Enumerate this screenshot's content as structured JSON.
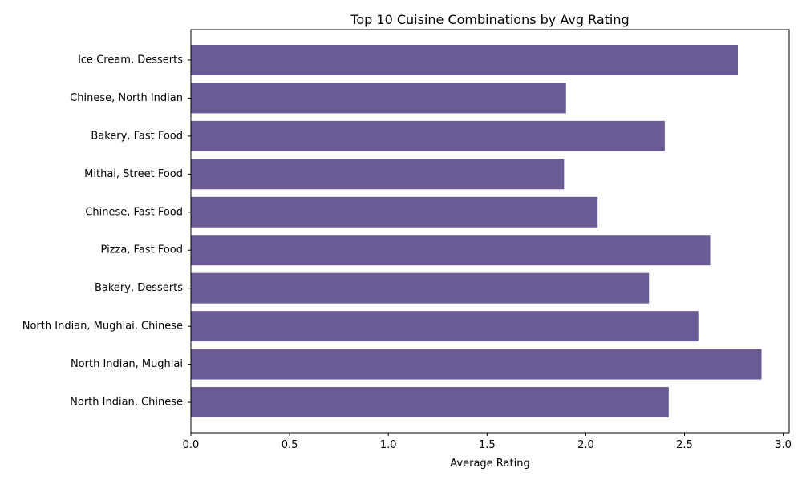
{
  "chart_data": {
    "type": "bar",
    "orientation": "horizontal",
    "title": "Top 10 Cuisine Combinations by Avg Rating",
    "xlabel": "Average Rating",
    "ylabel": "",
    "xlim": [
      0,
      3.03
    ],
    "xticks": [
      "0.0",
      "0.5",
      "1.0",
      "1.5",
      "2.0",
      "2.5",
      "3.0"
    ],
    "categories": [
      "Ice Cream, Desserts",
      "Chinese, North Indian",
      "Bakery, Fast Food",
      "Mithai, Street Food",
      "Chinese, Fast Food",
      "Pizza, Fast Food",
      "Bakery, Desserts",
      "North Indian, Mughlai, Chinese",
      "North Indian, Mughlai",
      "North Indian, Chinese"
    ],
    "values": [
      2.77,
      1.9,
      2.4,
      1.89,
      2.06,
      2.63,
      2.32,
      2.57,
      2.89,
      2.42
    ],
    "bar_color": "#6b5b95",
    "grid": false,
    "legend": "none"
  }
}
